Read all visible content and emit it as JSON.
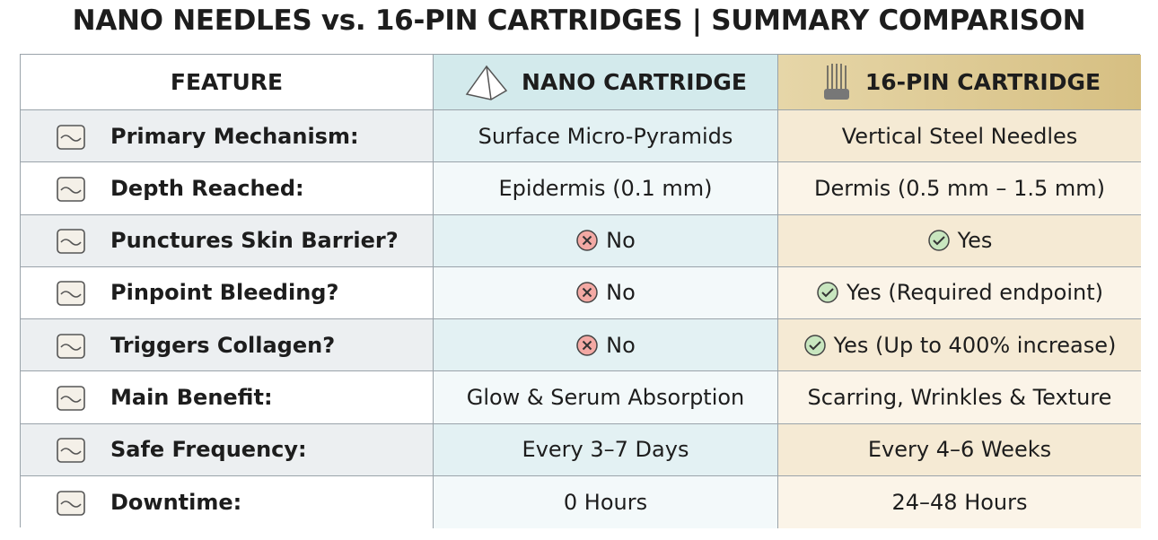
{
  "header": {
    "title": "NANO NEEDLES vs. 16-PIN CARTRIDGES | SUMMARY COMPARISON"
  },
  "table": {
    "columns": [
      "FEATURE",
      "NANO CARTRIDGE",
      "16-PIN CARTRIDGE"
    ],
    "rows": [
      [
        "Primary Mechanism:",
        "Surface Micro-Pyramids",
        "Vertical Steel Needles"
      ],
      [
        "Depth Reached:",
        "Epidermis (0.1 mm)",
        "Dermis (0.5 mm – 1.5 mm)"
      ],
      [
        "Punctures Skin Barrier?",
        "No",
        "Yes"
      ],
      [
        "Pinpoint Bleeding?",
        "No",
        "Yes (Required endpoint)"
      ],
      [
        "Triggers Collagen?",
        "No",
        "Yes (Up to 400% increase)"
      ],
      [
        "Main Benefit:",
        "Glow & Serum Absorption",
        "Scarring, Wrinkles & Texture"
      ],
      [
        "Safe Frequency:",
        "Every 3–7 Days",
        "Every 4–6 Weeks"
      ],
      [
        "Downtime:",
        "0 Hours",
        "24–48 Hours"
      ]
    ]
  }
}
